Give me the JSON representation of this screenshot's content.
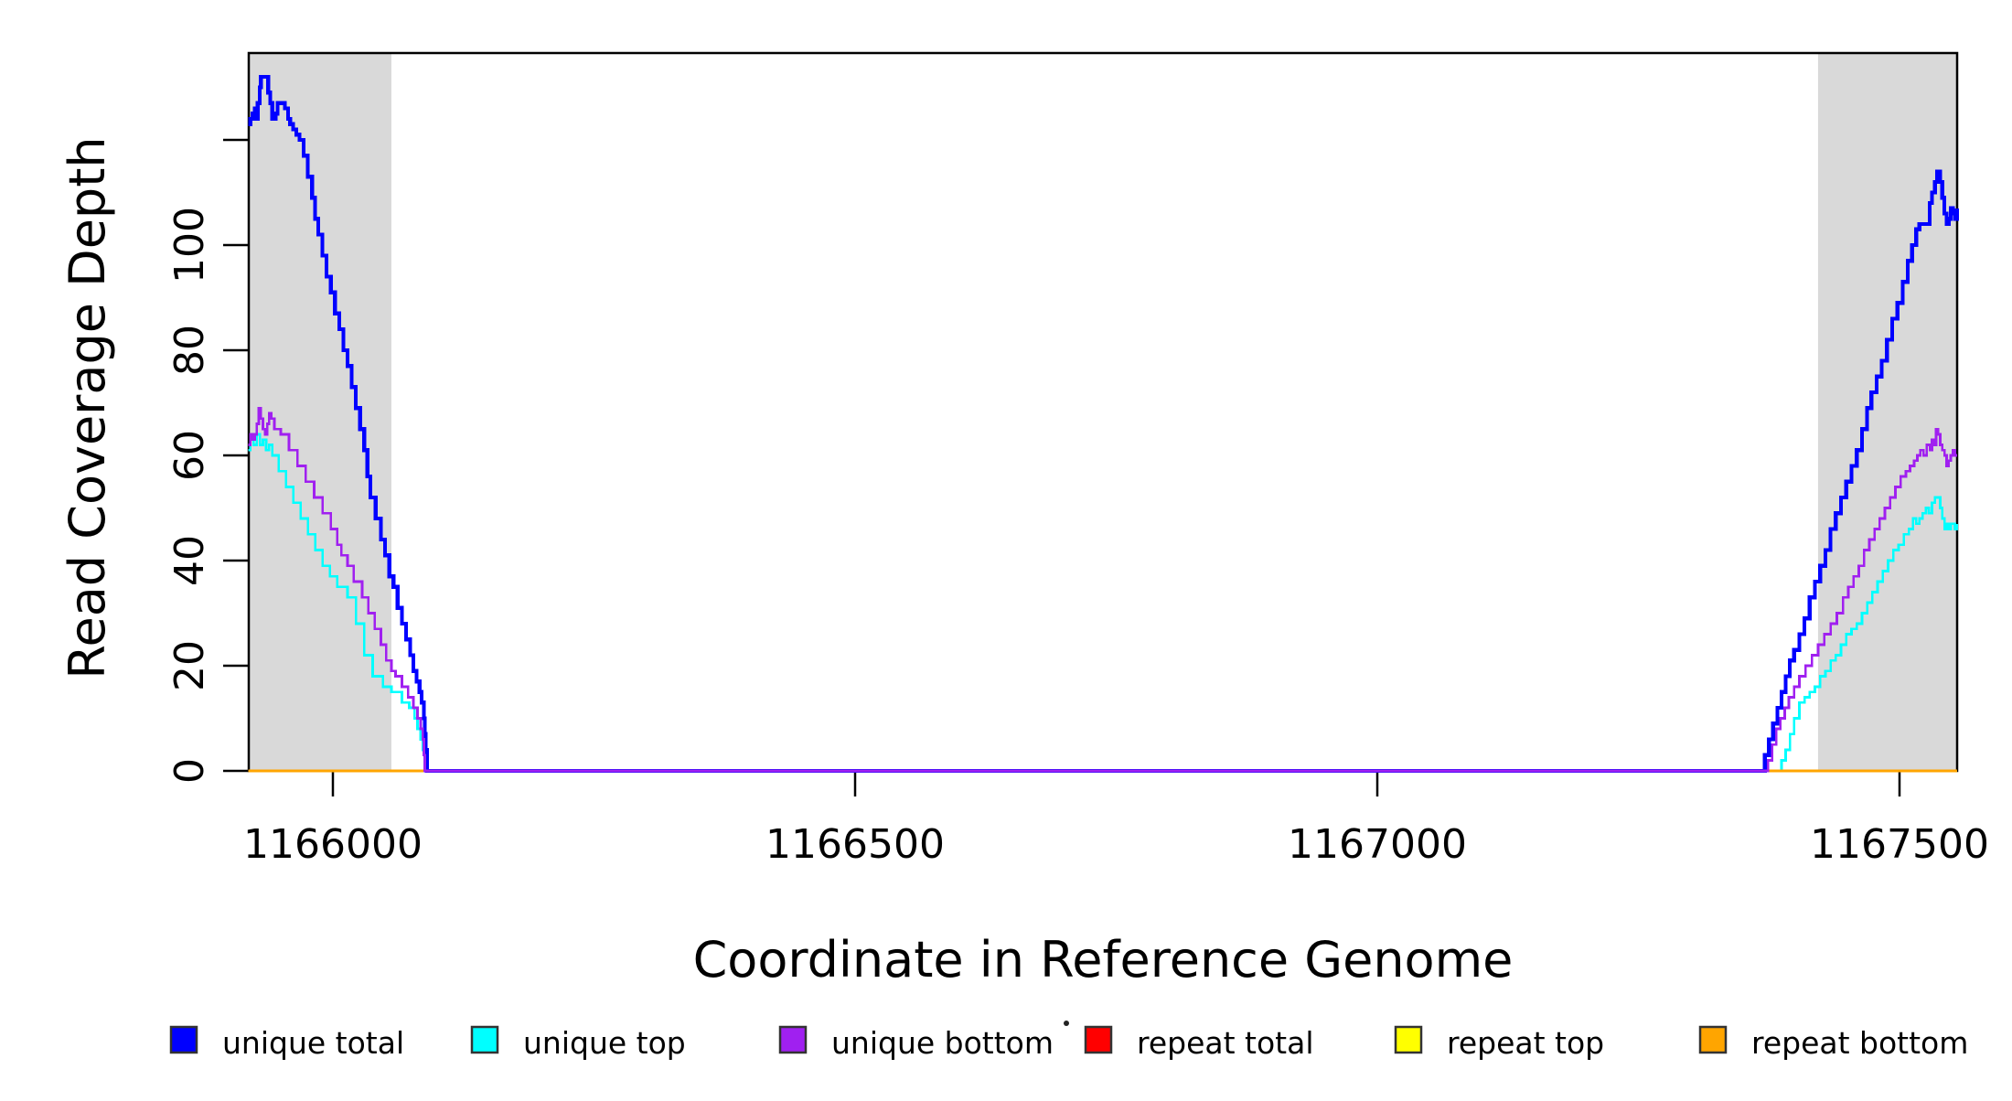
{
  "figure": {
    "background": "#FFFFFF",
    "plot_border_color": "#000000",
    "highlight_color": "#D9D9D9"
  },
  "chart_data": {
    "type": "line",
    "subtype": "step-coverage",
    "title": "",
    "xlabel": "Coordinate in Reference Genome",
    "ylabel": "Read Coverage Depth",
    "xlim": [
      1165919,
      1167556
    ],
    "ylim": [
      0,
      136
    ],
    "grid": false,
    "x_ticks": [
      {
        "value": 1166000,
        "label": "1166000"
      },
      {
        "value": 1166500,
        "label": "1166500"
      },
      {
        "value": 1167000,
        "label": "1167000"
      },
      {
        "value": 1167500,
        "label": "1167500"
      }
    ],
    "y_ticks": [
      {
        "value": 0,
        "label": "0"
      },
      {
        "value": 20,
        "label": "20"
      },
      {
        "value": 40,
        "label": "40"
      },
      {
        "value": 60,
        "label": "60"
      },
      {
        "value": 80,
        "label": "80"
      },
      {
        "value": 100,
        "label": "100"
      },
      {
        "value": 120,
        "label": ""
      }
    ],
    "highlight_regions": [
      {
        "x0": 1165919,
        "x1": 1166056
      },
      {
        "x0": 1167422,
        "x1": 1167555
      }
    ],
    "series": [
      {
        "name": "repeat total",
        "color": "#FF0000",
        "points": [
          [
            1165919,
            0
          ],
          [
            1167555,
            0
          ]
        ]
      },
      {
        "name": "repeat top",
        "color": "#FFFF00",
        "points": [
          [
            1165919,
            0
          ],
          [
            1167555,
            0
          ]
        ]
      },
      {
        "name": "unique top",
        "color": "#00FFFF",
        "points": [
          [
            1165919,
            61
          ],
          [
            1165921,
            63
          ],
          [
            1165924,
            62
          ],
          [
            1165927,
            64
          ],
          [
            1165930,
            62
          ],
          [
            1165933,
            63
          ],
          [
            1165936,
            61
          ],
          [
            1165939,
            62
          ],
          [
            1165942,
            60
          ],
          [
            1165948,
            57
          ],
          [
            1165955,
            54
          ],
          [
            1165962,
            51
          ],
          [
            1165969,
            48
          ],
          [
            1165976,
            45
          ],
          [
            1165983,
            42
          ],
          [
            1165990,
            39
          ],
          [
            1165997,
            37
          ],
          [
            1166004,
            35
          ],
          [
            1166014,
            33
          ],
          [
            1166022,
            28
          ],
          [
            1166030,
            22
          ],
          [
            1166038,
            18
          ],
          [
            1166048,
            16
          ],
          [
            1166056,
            15
          ],
          [
            1166060,
            15
          ],
          [
            1166066,
            13
          ],
          [
            1166073,
            12
          ],
          [
            1166078,
            10
          ],
          [
            1166081,
            8
          ],
          [
            1166084,
            6
          ],
          [
            1166086,
            4
          ],
          [
            1166088,
            0
          ],
          [
            1167383,
            0
          ],
          [
            1167387,
            2
          ],
          [
            1167391,
            4
          ],
          [
            1167395,
            7
          ],
          [
            1167399,
            10
          ],
          [
            1167404,
            13
          ],
          [
            1167409,
            14
          ],
          [
            1167414,
            15
          ],
          [
            1167419,
            16
          ],
          [
            1167424,
            18
          ],
          [
            1167429,
            19
          ],
          [
            1167434,
            21
          ],
          [
            1167439,
            22
          ],
          [
            1167444,
            24
          ],
          [
            1167449,
            26
          ],
          [
            1167454,
            27
          ],
          [
            1167459,
            28
          ],
          [
            1167464,
            30
          ],
          [
            1167469,
            32
          ],
          [
            1167474,
            34
          ],
          [
            1167479,
            36
          ],
          [
            1167484,
            38
          ],
          [
            1167489,
            40
          ],
          [
            1167494,
            42
          ],
          [
            1167499,
            43
          ],
          [
            1167504,
            45
          ],
          [
            1167509,
            46
          ],
          [
            1167513,
            48
          ],
          [
            1167516,
            47
          ],
          [
            1167519,
            48
          ],
          [
            1167522,
            49
          ],
          [
            1167525,
            50
          ],
          [
            1167528,
            49
          ],
          [
            1167531,
            51
          ],
          [
            1167534,
            52
          ],
          [
            1167537,
            52
          ],
          [
            1167539,
            50
          ],
          [
            1167541,
            48
          ],
          [
            1167543,
            46
          ],
          [
            1167545,
            47
          ],
          [
            1167547,
            46
          ],
          [
            1167549,
            47
          ],
          [
            1167551,
            47
          ],
          [
            1167553,
            46
          ],
          [
            1167555,
            47
          ]
        ]
      },
      {
        "name": "repeat bottom",
        "color": "#FFA500",
        "points": [
          [
            1165919,
            0
          ],
          [
            1167555,
            0
          ]
        ]
      },
      {
        "name": "unique total",
        "color": "#0000FF",
        "points": [
          [
            1165919,
            123
          ],
          [
            1165921,
            124
          ],
          [
            1165923,
            125
          ],
          [
            1165925,
            126
          ],
          [
            1165926,
            124
          ],
          [
            1165928,
            127
          ],
          [
            1165930,
            130
          ],
          [
            1165931,
            132
          ],
          [
            1165936,
            132
          ],
          [
            1165938,
            129
          ],
          [
            1165940,
            127
          ],
          [
            1165942,
            124
          ],
          [
            1165945,
            125
          ],
          [
            1165947,
            127
          ],
          [
            1165952,
            127
          ],
          [
            1165954,
            126
          ],
          [
            1165957,
            124
          ],
          [
            1165959,
            123
          ],
          [
            1165962,
            122
          ],
          [
            1165965,
            121
          ],
          [
            1165968,
            120
          ],
          [
            1165972,
            117
          ],
          [
            1165976,
            113
          ],
          [
            1165980,
            109
          ],
          [
            1165983,
            105
          ],
          [
            1165986,
            102
          ],
          [
            1165990,
            98
          ],
          [
            1165994,
            94
          ],
          [
            1165998,
            91
          ],
          [
            1166002,
            87
          ],
          [
            1166006,
            84
          ],
          [
            1166010,
            80
          ],
          [
            1166014,
            77
          ],
          [
            1166018,
            73
          ],
          [
            1166022,
            69
          ],
          [
            1166026,
            65
          ],
          [
            1166030,
            61
          ],
          [
            1166033,
            56
          ],
          [
            1166036,
            52
          ],
          [
            1166041,
            48
          ],
          [
            1166046,
            44
          ],
          [
            1166050,
            41
          ],
          [
            1166054,
            37
          ],
          [
            1166058,
            35
          ],
          [
            1166062,
            31
          ],
          [
            1166066,
            28
          ],
          [
            1166070,
            25
          ],
          [
            1166074,
            22
          ],
          [
            1166077,
            19
          ],
          [
            1166080,
            17
          ],
          [
            1166083,
            15
          ],
          [
            1166085,
            13
          ],
          [
            1166087,
            10
          ],
          [
            1166088,
            7
          ],
          [
            1166089,
            4
          ],
          [
            1166090,
            0
          ],
          [
            1167367,
            0
          ],
          [
            1167371,
            3
          ],
          [
            1167375,
            6
          ],
          [
            1167379,
            9
          ],
          [
            1167383,
            12
          ],
          [
            1167387,
            15
          ],
          [
            1167391,
            18
          ],
          [
            1167395,
            21
          ],
          [
            1167399,
            23
          ],
          [
            1167404,
            26
          ],
          [
            1167409,
            29
          ],
          [
            1167414,
            33
          ],
          [
            1167419,
            36
          ],
          [
            1167424,
            39
          ],
          [
            1167429,
            42
          ],
          [
            1167434,
            46
          ],
          [
            1167439,
            49
          ],
          [
            1167444,
            52
          ],
          [
            1167449,
            55
          ],
          [
            1167454,
            58
          ],
          [
            1167459,
            61
          ],
          [
            1167464,
            65
          ],
          [
            1167469,
            69
          ],
          [
            1167473,
            72
          ],
          [
            1167478,
            75
          ],
          [
            1167483,
            78
          ],
          [
            1167488,
            82
          ],
          [
            1167493,
            86
          ],
          [
            1167498,
            89
          ],
          [
            1167503,
            93
          ],
          [
            1167508,
            97
          ],
          [
            1167512,
            100
          ],
          [
            1167516,
            103
          ],
          [
            1167519,
            104
          ],
          [
            1167526,
            104
          ],
          [
            1167529,
            108
          ],
          [
            1167531,
            110
          ],
          [
            1167534,
            112
          ],
          [
            1167536,
            114
          ],
          [
            1167539,
            112
          ],
          [
            1167541,
            109
          ],
          [
            1167543,
            106
          ],
          [
            1167545,
            104
          ],
          [
            1167547,
            105
          ],
          [
            1167549,
            107
          ],
          [
            1167551,
            106
          ],
          [
            1167553,
            105
          ],
          [
            1167555,
            107
          ]
        ]
      },
      {
        "name": "unique bottom",
        "color": "#A020F0",
        "points": [
          [
            1165919,
            62
          ],
          [
            1165921,
            64
          ],
          [
            1165923,
            63
          ],
          [
            1165925,
            64
          ],
          [
            1165927,
            66
          ],
          [
            1165929,
            69
          ],
          [
            1165931,
            67
          ],
          [
            1165933,
            65
          ],
          [
            1165935,
            64
          ],
          [
            1165937,
            66
          ],
          [
            1165939,
            68
          ],
          [
            1165941,
            67
          ],
          [
            1165944,
            65
          ],
          [
            1165950,
            64
          ],
          [
            1165958,
            61
          ],
          [
            1165966,
            58
          ],
          [
            1165974,
            55
          ],
          [
            1165982,
            52
          ],
          [
            1165990,
            49
          ],
          [
            1165998,
            46
          ],
          [
            1166004,
            43
          ],
          [
            1166008,
            41
          ],
          [
            1166014,
            39
          ],
          [
            1166020,
            36
          ],
          [
            1166028,
            33
          ],
          [
            1166034,
            30
          ],
          [
            1166040,
            27
          ],
          [
            1166046,
            24
          ],
          [
            1166051,
            21
          ],
          [
            1166056,
            19
          ],
          [
            1166060,
            18
          ],
          [
            1166066,
            16
          ],
          [
            1166072,
            14
          ],
          [
            1166077,
            12
          ],
          [
            1166081,
            10
          ],
          [
            1166084,
            8
          ],
          [
            1166086,
            6
          ],
          [
            1166087,
            3
          ],
          [
            1166088,
            0
          ],
          [
            1167370,
            0
          ],
          [
            1167374,
            2
          ],
          [
            1167378,
            5
          ],
          [
            1167382,
            8
          ],
          [
            1167386,
            10
          ],
          [
            1167390,
            12
          ],
          [
            1167394,
            14
          ],
          [
            1167399,
            16
          ],
          [
            1167404,
            18
          ],
          [
            1167410,
            20
          ],
          [
            1167416,
            22
          ],
          [
            1167422,
            24
          ],
          [
            1167428,
            26
          ],
          [
            1167434,
            28
          ],
          [
            1167440,
            30
          ],
          [
            1167446,
            33
          ],
          [
            1167451,
            35
          ],
          [
            1167456,
            37
          ],
          [
            1167461,
            39
          ],
          [
            1167466,
            42
          ],
          [
            1167471,
            44
          ],
          [
            1167476,
            46
          ],
          [
            1167481,
            48
          ],
          [
            1167486,
            50
          ],
          [
            1167491,
            52
          ],
          [
            1167496,
            54
          ],
          [
            1167501,
            56
          ],
          [
            1167506,
            57
          ],
          [
            1167510,
            58
          ],
          [
            1167514,
            59
          ],
          [
            1167517,
            60
          ],
          [
            1167520,
            61
          ],
          [
            1167523,
            60
          ],
          [
            1167526,
            62
          ],
          [
            1167529,
            61
          ],
          [
            1167531,
            63
          ],
          [
            1167533,
            62
          ],
          [
            1167535,
            65
          ],
          [
            1167537,
            64
          ],
          [
            1167539,
            62
          ],
          [
            1167541,
            61
          ],
          [
            1167543,
            60
          ],
          [
            1167545,
            58
          ],
          [
            1167547,
            59
          ],
          [
            1167549,
            60
          ],
          [
            1167551,
            61
          ],
          [
            1167553,
            60
          ],
          [
            1167555,
            60
          ]
        ]
      }
    ]
  },
  "legend": {
    "swatch_border": "#333333",
    "items": [
      {
        "label": "unique total",
        "color": "#0000FF"
      },
      {
        "label": "unique top",
        "color": "#00FFFF"
      },
      {
        "label": "unique bottom",
        "color": "#A020F0"
      },
      {
        "label": "repeat total",
        "color": "#FF0000"
      },
      {
        "label": "repeat top",
        "color": "#FFFF00"
      },
      {
        "label": "repeat bottom",
        "color": "#FFA500"
      }
    ],
    "stray_dot": "·"
  }
}
